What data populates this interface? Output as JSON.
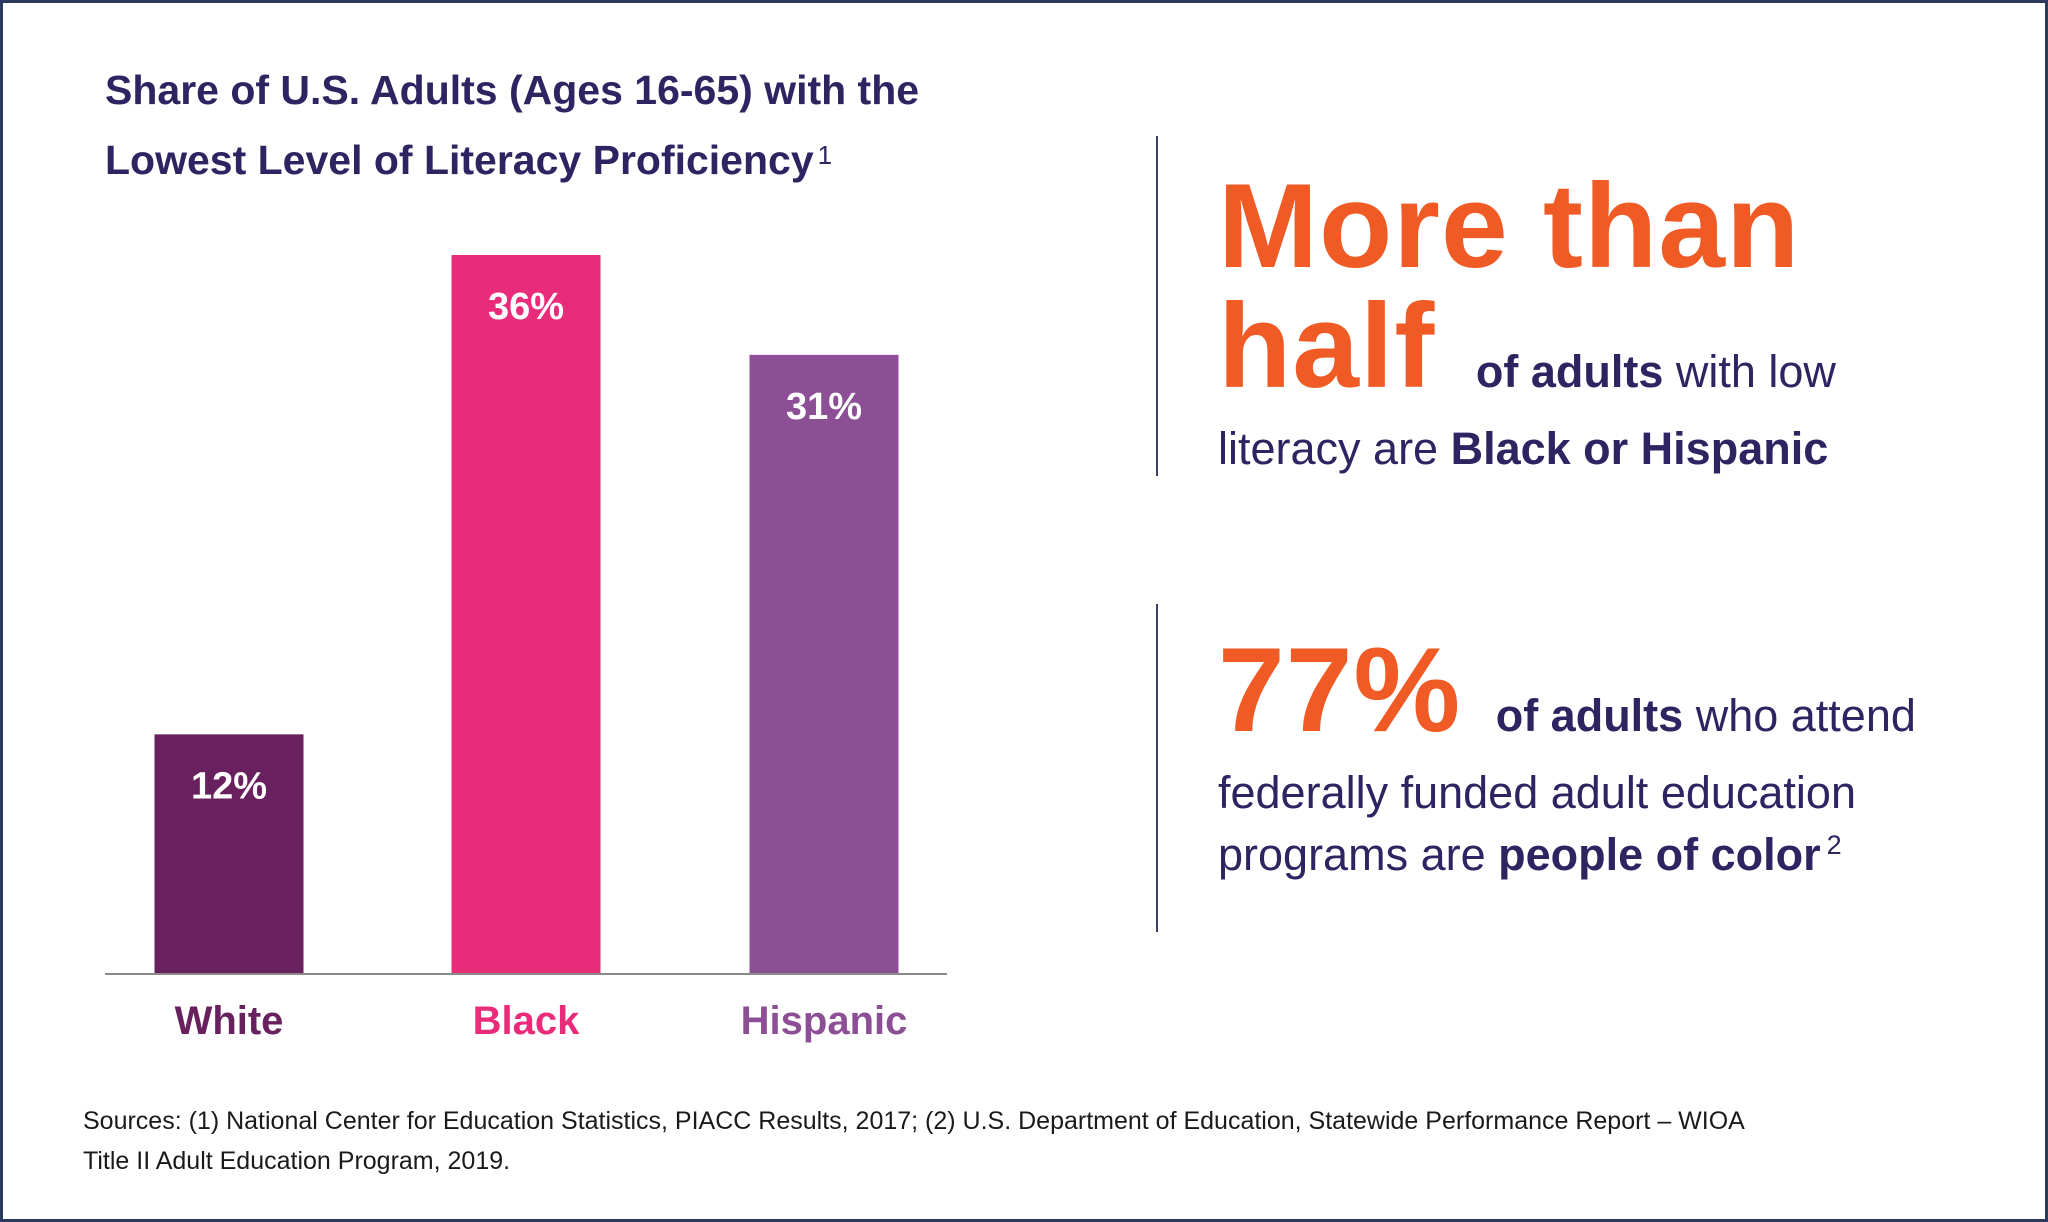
{
  "chart_data": {
    "type": "bar",
    "title_line1": "Share of U.S. Adults (Ages 16-65) with the",
    "title_line2": "Lowest Level of Literacy Proficiency",
    "title_footnote": "1",
    "categories": [
      "White",
      "Black",
      "Hispanic"
    ],
    "values": [
      12,
      36,
      31
    ],
    "value_labels": [
      "12%",
      "36%",
      "31%"
    ],
    "colors": [
      "#68205e",
      "#e92c7a",
      "#8c4f95"
    ],
    "label_colors": [
      "#68205e",
      "#e92c7a",
      "#8c4f95"
    ],
    "value_label_color": "#ffffff",
    "ylim": [
      0,
      36
    ],
    "xlabel": "",
    "ylabel": ""
  },
  "stat1": {
    "big_line1": "More than",
    "big_line2": "half",
    "bold1": "of adults",
    "text1": " with low",
    "text2": "literacy are ",
    "bold2": "Black or Hispanic"
  },
  "stat2": {
    "big": "77%",
    "bold1": "of adults",
    "text1": " who attend",
    "text2": "federally funded adult education",
    "text3": "programs are ",
    "bold2": "people of color",
    "footnote": "2"
  },
  "sources": {
    "line1": "Sources: (1) National Center for Education Statistics, PIACC Results, 2017; (2) U.S. Department of Education, Statewide Performance Report – WIOA",
    "line2": "Title II Adult Education Program, 2019."
  },
  "colors": {
    "accent_orange": "#f05a24",
    "navy": "#2e2461",
    "border": "#2b3a5c"
  }
}
